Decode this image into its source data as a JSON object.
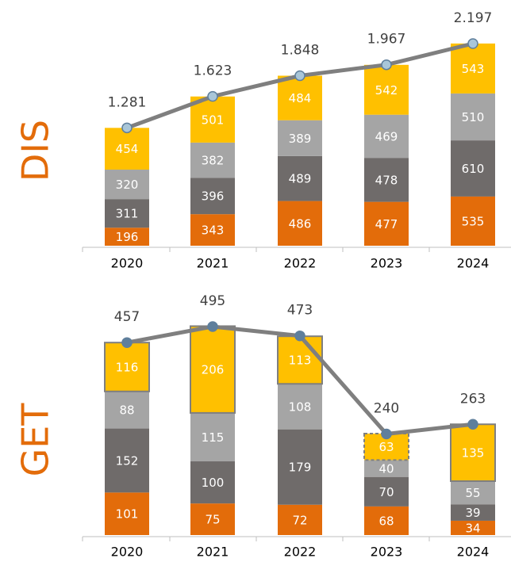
{
  "chart_data": [
    {
      "type": "stacked_bar_line",
      "ylabel": "DIS",
      "categories": [
        "2020",
        "2021",
        "2022",
        "2023",
        "2024"
      ],
      "series": [
        {
          "color": "#e36c0a",
          "values": [
            196,
            343,
            486,
            477,
            535
          ]
        },
        {
          "color": "#6f6b6a",
          "values": [
            311,
            396,
            489,
            478,
            610
          ]
        },
        {
          "color": "#a5a5a5",
          "values": [
            320,
            382,
            389,
            469,
            510
          ]
        },
        {
          "color": "#ffc000",
          "values": [
            454,
            501,
            484,
            542,
            543
          ]
        }
      ],
      "totals": {
        "color": "#7f7f7f",
        "marker_color": "#a9c6d8",
        "values": [
          1281,
          1623,
          1848,
          1967,
          2197
        ],
        "value_labels": [
          "1.281",
          "1.623",
          "1.848",
          "1.967",
          "2.197"
        ]
      }
    },
    {
      "type": "stacked_bar_line",
      "ylabel": "GET",
      "categories": [
        "2020",
        "2021",
        "2022",
        "2023",
        "2024"
      ],
      "series": [
        {
          "color": "#e36c0a",
          "values": [
            101,
            75,
            72,
            68,
            34
          ]
        },
        {
          "color": "#6f6b6a",
          "values": [
            152,
            100,
            179,
            70,
            39
          ]
        },
        {
          "color": "#a5a5a5",
          "values": [
            88,
            115,
            108,
            40,
            55
          ]
        },
        {
          "color": "#ffc000",
          "values": [
            116,
            206,
            113,
            63,
            135
          ]
        }
      ],
      "totals": {
        "color": "#7f7f7f",
        "marker_color": "#5f7f9c",
        "values": [
          457,
          495,
          473,
          240,
          263
        ]
      }
    }
  ]
}
